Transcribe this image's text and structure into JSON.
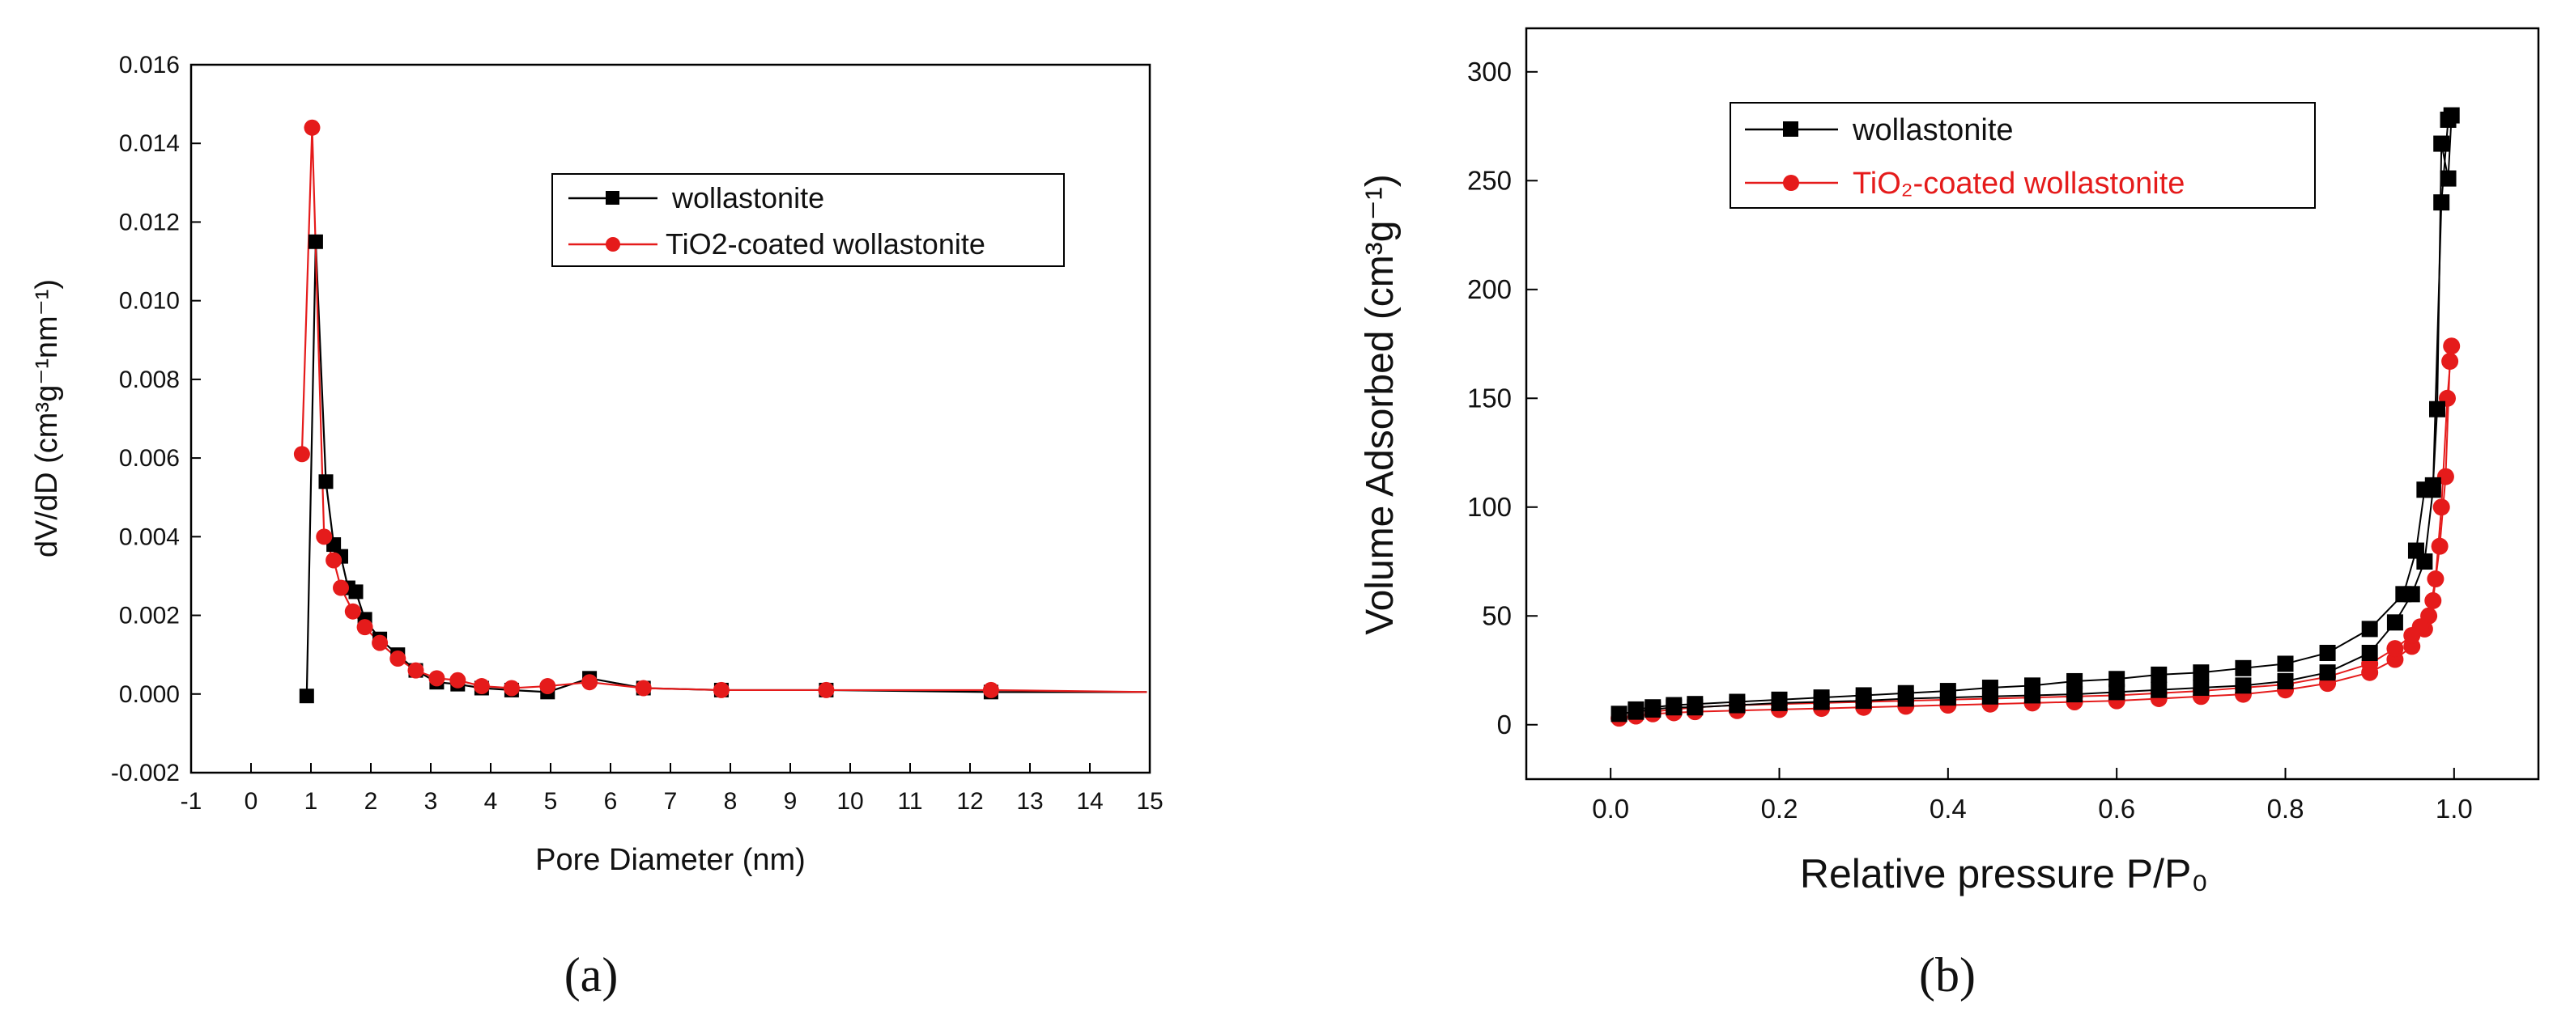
{
  "chart_data": [
    {
      "panel_label": "(a)",
      "type": "line",
      "xlabel": "Pore Diameter (nm)",
      "ylabel": "dV/dD (cm³g⁻¹nm⁻¹)",
      "xlim": [
        -1,
        15
      ],
      "ylim": [
        -0.002,
        0.016
      ],
      "xticks": [
        -1,
        0,
        1,
        2,
        3,
        4,
        5,
        6,
        7,
        8,
        9,
        10,
        11,
        12,
        13,
        14,
        15
      ],
      "yticks": [
        "-0.002",
        "0.000",
        "0.002",
        "0.004",
        "0.006",
        "0.008",
        "0.010",
        "0.012",
        "0.014",
        "0.016"
      ],
      "legend_position": "top-right",
      "series": [
        {
          "name": "wollastonite",
          "color": "#000000",
          "marker": "square",
          "x": [
            0.93,
            1.08,
            1.25,
            1.38,
            1.5,
            1.62,
            1.75,
            1.9,
            2.15,
            2.45,
            2.75,
            3.1,
            3.45,
            3.85,
            4.35,
            4.95,
            5.65,
            6.55,
            7.85,
            9.6,
            12.35,
            14.95
          ],
          "y": [
            -5e-05,
            0.0115,
            0.0054,
            0.0038,
            0.0035,
            0.0027,
            0.0026,
            0.0019,
            0.0014,
            0.001,
            0.0006,
            0.0003,
            0.00025,
            0.00015,
            0.0001,
            5e-05,
            0.0004,
            0.00015,
            0.0001,
            0.0001,
            5e-05,
            5e-05
          ]
        },
        {
          "name": "TiO2-coated wollastonite",
          "color": "#e51b1b",
          "marker": "circle",
          "x": [
            0.85,
            1.02,
            1.22,
            1.38,
            1.5,
            1.7,
            1.9,
            2.15,
            2.45,
            2.75,
            3.1,
            3.45,
            3.85,
            4.35,
            4.95,
            5.65,
            6.55,
            7.85,
            9.6,
            12.35,
            14.95
          ],
          "y": [
            0.0061,
            0.0144,
            0.004,
            0.0034,
            0.0027,
            0.0021,
            0.0017,
            0.0013,
            0.0009,
            0.0006,
            0.0004,
            0.00035,
            0.0002,
            0.00015,
            0.0002,
            0.0003,
            0.00015,
            0.0001,
            0.0001,
            0.0001,
            5e-05
          ]
        }
      ]
    },
    {
      "panel_label": "(b)",
      "type": "line",
      "xlabel": "Relative pressure P/P₀",
      "ylabel": "Volume Adsorbed (cm³g⁻¹)",
      "xlim": [
        -0.1,
        1.1
      ],
      "ylim": [
        -25,
        320
      ],
      "xticks": [
        "0.0",
        "0.2",
        "0.4",
        "0.6",
        "0.8",
        "1.0"
      ],
      "yticks": [
        "0",
        "50",
        "100",
        "150",
        "200",
        "250",
        "300"
      ],
      "legend_position": "top-left",
      "series": [
        {
          "name": "wollastonite",
          "color": "#000000",
          "marker": "square",
          "adsorption": {
            "x": [
              0.01,
              0.03,
              0.05,
              0.075,
              0.1,
              0.15,
              0.2,
              0.25,
              0.3,
              0.35,
              0.4,
              0.45,
              0.5,
              0.55,
              0.6,
              0.65,
              0.7,
              0.75,
              0.8,
              0.85,
              0.9,
              0.93,
              0.95,
              0.965,
              0.975,
              0.985,
              0.993
            ],
            "y": [
              5,
              6,
              7,
              8,
              8,
              9,
              10,
              10.5,
              11,
              12,
              12.5,
              13,
              13.5,
              14,
              15,
              16,
              17,
              18,
              20,
              24,
              33,
              47,
              60,
              75,
              108,
              240,
              278
            ]
          },
          "desorption": {
            "x": [
              0.997,
              0.993,
              0.985,
              0.98,
              0.975,
              0.965,
              0.955,
              0.94,
              0.9,
              0.85,
              0.8,
              0.75,
              0.7,
              0.65,
              0.6,
              0.55,
              0.5,
              0.45,
              0.4,
              0.35,
              0.3,
              0.25,
              0.2,
              0.15,
              0.1,
              0.075,
              0.05,
              0.03
            ],
            "y": [
              280,
              251,
              267,
              145,
              110,
              108,
              80,
              60,
              44,
              33,
              28,
              26,
              24,
              23,
              21,
              20,
              18,
              17,
              15.5,
              14.5,
              13.5,
              12.5,
              11.5,
              10.5,
              9.5,
              9,
              8,
              7
            ]
          }
        },
        {
          "name": "TiO₂-coated wollastonite",
          "color": "#e51b1b",
          "marker": "circle",
          "adsorption": {
            "x": [
              0.01,
              0.03,
              0.05,
              0.075,
              0.1,
              0.15,
              0.2,
              0.25,
              0.3,
              0.35,
              0.4,
              0.45,
              0.5,
              0.55,
              0.6,
              0.65,
              0.7,
              0.75,
              0.8,
              0.85,
              0.9,
              0.93,
              0.95,
              0.965,
              0.975,
              0.983,
              0.99,
              0.995
            ],
            "y": [
              3,
              4,
              5,
              5.5,
              6,
              6.5,
              7,
              7.5,
              8,
              8.5,
              9,
              9.5,
              10,
              10.5,
              11,
              12,
              13,
              14,
              16,
              19,
              24,
              30,
              36,
              44,
              57,
              82,
              114,
              167
            ]
          },
          "desorption": {
            "x": [
              0.997,
              0.992,
              0.985,
              0.978,
              0.97,
              0.96,
              0.95,
              0.93,
              0.9,
              0.85,
              0.8,
              0.75,
              0.7,
              0.65,
              0.6,
              0.55,
              0.5,
              0.45,
              0.4,
              0.35,
              0.3,
              0.25,
              0.2,
              0.15,
              0.1,
              0.075,
              0.05
            ],
            "y": [
              174,
              150,
              100,
              67,
              50,
              45,
              41,
              35,
              28,
              22,
              18.5,
              17,
              15.5,
              14.5,
              13.5,
              13,
              12.5,
              12,
              11.5,
              11,
              10.5,
              10,
              9.5,
              9,
              8,
              7,
              6
            ]
          }
        }
      ]
    }
  ]
}
